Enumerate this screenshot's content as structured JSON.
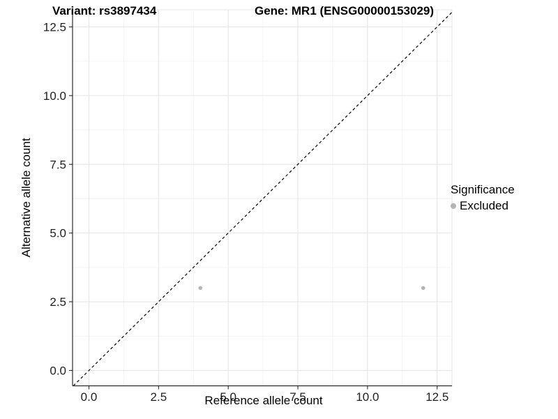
{
  "title": {
    "variant": "Variant: rs3897434",
    "gene": "Gene: MR1 (ENSG00000153029)"
  },
  "axes": {
    "x_label": "Reference allele count",
    "y_label": "Alternative allele count"
  },
  "legend": {
    "title": "Significance",
    "items": [
      {
        "label": "Excluded",
        "color": "#b3b3b3"
      }
    ]
  },
  "chart_data": {
    "type": "scatter",
    "title": "Variant: rs3897434    Gene: MR1 (ENSG00000153029)",
    "xlabel": "Reference allele count",
    "ylabel": "Alternative allele count",
    "xlim": [
      -0.625,
      13.125
    ],
    "ylim": [
      -0.625,
      13.125
    ],
    "x_ticks": [
      0.0,
      2.5,
      5.0,
      7.5,
      10.0,
      12.5
    ],
    "y_ticks": [
      0.0,
      2.5,
      5.0,
      7.5,
      10.0,
      12.5
    ],
    "x_tick_labels": [
      "0.0",
      "2.5",
      "5.0",
      "7.5",
      "10.0",
      "12.5"
    ],
    "y_tick_labels": [
      "0.0",
      "2.5",
      "5.0",
      "7.5",
      "10.0",
      "12.5"
    ],
    "grid": "major+minor",
    "legend_position": "right",
    "series": [
      {
        "name": "Excluded",
        "color": "#b3b3b3",
        "marker": "circle",
        "points": [
          [
            4,
            3
          ],
          [
            12,
            3
          ]
        ]
      }
    ],
    "reference_line": {
      "kind": "identity y=x",
      "style": "dashed",
      "color": "#000000"
    }
  },
  "style_colors": {
    "grid_major": "#e4e4e4",
    "grid_minor": "#f2f2f2",
    "panel_border": "#e7e7e7",
    "axis_line": "#2b2b2b",
    "tick_text": "#1f1f1f"
  }
}
